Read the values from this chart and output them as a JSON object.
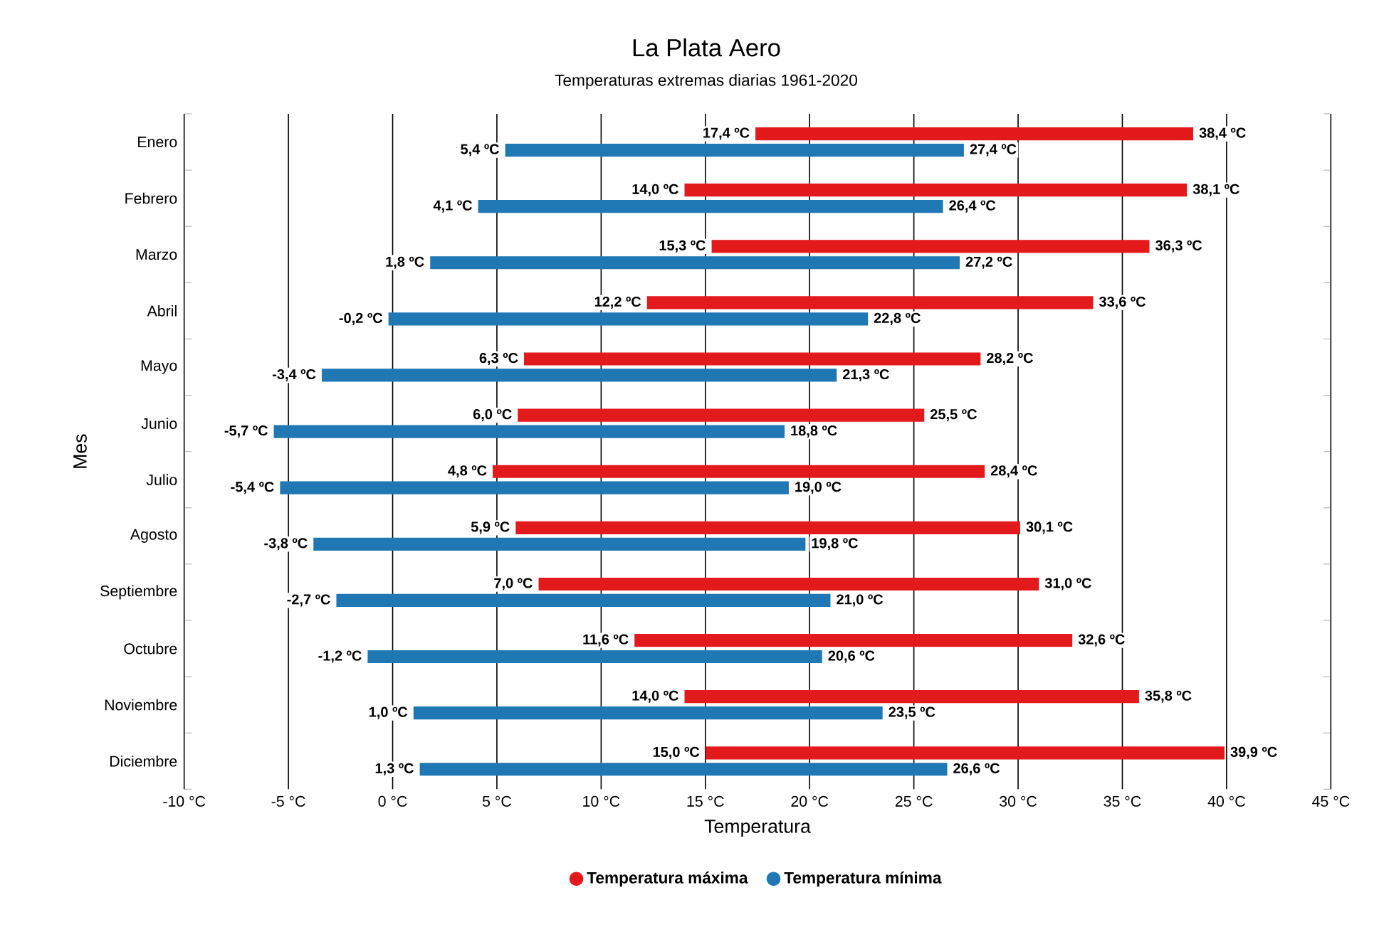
{
  "chart_data": {
    "type": "bar",
    "orientation": "horizontal",
    "title": "La Plata Aero",
    "subtitle": "Temperaturas extremas diarias 1961-2020",
    "xlabel": "Temperatura",
    "ylabel": "Mes",
    "categories": [
      "Enero",
      "Febrero",
      "Marzo",
      "Abril",
      "Mayo",
      "Junio",
      "Julio",
      "Agosto",
      "Septiembre",
      "Octubre",
      "Noviembre",
      "Diciembre"
    ],
    "series": [
      {
        "name": "Temperatura máxima",
        "color": "#e31a1c",
        "base": [
          17.4,
          14.0,
          15.3,
          12.2,
          6.3,
          6.0,
          4.8,
          5.9,
          7.0,
          11.6,
          14.0,
          15.0
        ],
        "values": [
          21.0,
          24.1,
          21.0,
          21.4,
          21.9,
          19.5,
          23.6,
          24.2,
          24.0,
          21.0,
          21.8,
          24.9
        ]
      },
      {
        "name": "Temperatura mínima",
        "color": "#1f78b4",
        "base": [
          5.4,
          4.1,
          1.8,
          -0.2,
          -3.4,
          -5.7,
          -5.4,
          -3.8,
          -2.7,
          -1.2,
          1.0,
          1.3
        ],
        "values": [
          22.0,
          22.3,
          25.4,
          23.0,
          24.7,
          24.5,
          24.4,
          23.6,
          23.7,
          21.8,
          22.5,
          25.3
        ]
      }
    ],
    "xlim": [
      -10,
      45
    ],
    "xticks": [
      {
        "value": -10,
        "label": "-10 °C"
      },
      {
        "value": -5,
        "label": "-5 °C"
      },
      {
        "value": 0,
        "label": "0 °C"
      },
      {
        "value": 5,
        "label": "5 °C"
      },
      {
        "value": 10,
        "label": "10 °C"
      },
      {
        "value": 15,
        "label": "15 °C"
      },
      {
        "value": 20,
        "label": "20 °C"
      },
      {
        "value": 25,
        "label": "25 °C"
      },
      {
        "value": 30,
        "label": "30 °C"
      },
      {
        "value": 35,
        "label": "35 °C"
      },
      {
        "value": 40,
        "label": "40 °C"
      },
      {
        "value": 45,
        "label": "45 °C"
      }
    ],
    "grid": "x",
    "legend": "bottom",
    "annotations": [
      {
        "text": "17,4 ºC",
        "x": 17.4,
        "y": "Enero"
      },
      {
        "text": "38,4 ºC",
        "x": 38.4,
        "y": "Enero"
      },
      {
        "text": "5,4 ºC",
        "x": 5.4,
        "y": "Enero"
      },
      {
        "text": "27,4 ºC",
        "x": 27.4,
        "y": "Enero"
      },
      {
        "text": "14,0 ºC",
        "x": 14.0,
        "y": "Febrero"
      },
      {
        "text": "38,1 ºC",
        "x": 38.1,
        "y": "Febrero"
      },
      {
        "text": "4,1 ºC",
        "x": 4.1,
        "y": "Febrero"
      },
      {
        "text": "26,4 ºC",
        "x": 26.4,
        "y": "Febrero"
      },
      {
        "text": "15,3 ºC",
        "x": 15.3,
        "y": "Marzo"
      },
      {
        "text": "36,3 ºC",
        "x": 36.3,
        "y": "Marzo"
      },
      {
        "text": "1,8 ºC",
        "x": 1.8,
        "y": "Marzo"
      },
      {
        "text": "27,2 ºC",
        "x": 27.2,
        "y": "Marzo"
      },
      {
        "text": "12,2 ºC",
        "x": 12.2,
        "y": "Abril"
      },
      {
        "text": "33,6 ºC",
        "x": 33.6,
        "y": "Abril"
      },
      {
        "text": "-0,2 ºC",
        "x": -0.2,
        "y": "Abril"
      },
      {
        "text": "22,8 ºC",
        "x": 22.8,
        "y": "Abril"
      },
      {
        "text": "6,3 ºC",
        "x": 6.3,
        "y": "Mayo"
      },
      {
        "text": "28,2 ºC",
        "x": 28.2,
        "y": "Mayo"
      },
      {
        "text": "-3,4 ºC",
        "x": -3.4,
        "y": "Mayo"
      },
      {
        "text": "21,3 ºC",
        "x": 21.3,
        "y": "Mayo"
      },
      {
        "text": "6,0 ºC",
        "x": 6.0,
        "y": "Junio"
      },
      {
        "text": "25,5 ºC",
        "x": 25.5,
        "y": "Junio"
      },
      {
        "text": "-5,7 ºC",
        "x": -5.7,
        "y": "Junio"
      },
      {
        "text": "18,8 ºC",
        "x": 18.8,
        "y": "Junio"
      },
      {
        "text": "4,8 ºC",
        "x": 4.8,
        "y": "Julio"
      },
      {
        "text": "28,4 ºC",
        "x": 28.4,
        "y": "Julio"
      },
      {
        "text": "-5,4 ºC",
        "x": -5.4,
        "y": "Julio"
      },
      {
        "text": "19,0 ºC",
        "x": 19.0,
        "y": "Julio"
      },
      {
        "text": "5,9 ºC",
        "x": 5.9,
        "y": "Agosto"
      },
      {
        "text": "30,1 ºC",
        "x": 30.1,
        "y": "Agosto"
      },
      {
        "text": "-3,8 ºC",
        "x": -3.8,
        "y": "Agosto"
      },
      {
        "text": "19,8 ºC",
        "x": 19.8,
        "y": "Agosto"
      },
      {
        "text": "7,0 ºC",
        "x": 7.0,
        "y": "Septiembre"
      },
      {
        "text": "31,0 ºC",
        "x": 31.0,
        "y": "Septiembre"
      },
      {
        "text": "-2,7 ºC",
        "x": -2.7,
        "y": "Septiembre"
      },
      {
        "text": "21,0 ºC",
        "x": 21.0,
        "y": "Septiembre"
      },
      {
        "text": "11,6 ºC",
        "x": 11.6,
        "y": "Octubre"
      },
      {
        "text": "32,6 ºC",
        "x": 32.6,
        "y": "Octubre"
      },
      {
        "text": "-1,2 ºC",
        "x": -1.2,
        "y": "Octubre"
      },
      {
        "text": "20,6 ºC",
        "x": 20.6,
        "y": "Octubre"
      },
      {
        "text": "14,0 ºC",
        "x": 14.0,
        "y": "Noviembre"
      },
      {
        "text": "35,8 ºC",
        "x": 35.8,
        "y": "Noviembre"
      },
      {
        "text": "1,0 ºC",
        "x": 1.0,
        "y": "Noviembre"
      },
      {
        "text": "23,5 ºC",
        "x": 23.5,
        "y": "Noviembre"
      },
      {
        "text": "15,0 ºC",
        "x": 15.0,
        "y": "Diciembre"
      },
      {
        "text": "39,9 ºC",
        "x": 39.9,
        "y": "Diciembre"
      },
      {
        "text": "1,3 ºC",
        "x": 1.3,
        "y": "Diciembre"
      },
      {
        "text": "26,6 ºC",
        "x": 26.6,
        "y": "Diciembre"
      }
    ]
  }
}
